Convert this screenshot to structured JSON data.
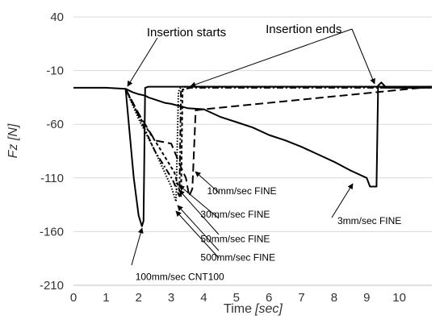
{
  "chart_data": {
    "type": "line",
    "xlabel": "Time",
    "xlabel_unit": "[sec]",
    "ylabel": "Fz [N]",
    "xlim": [
      0,
      11
    ],
    "ylim": [
      -210,
      40
    ],
    "x_ticks": [
      "0",
      "1",
      "2",
      "3",
      "4",
      "5",
      "6",
      "7",
      "8",
      "9",
      "10"
    ],
    "y_ticks": [
      "40",
      "-10",
      "-60",
      "-110",
      "-160",
      "-210"
    ],
    "grid": "horizontal",
    "annotations": [
      {
        "text": "Insertion starts",
        "x": 2.25,
        "y": 22
      },
      {
        "text": "Insertion ends",
        "x": 5.9,
        "y": 25
      },
      {
        "text": "10mm/sec FINE",
        "x": 4.1,
        "y": -125
      },
      {
        "text": "30mm/sec FINE",
        "x": 3.9,
        "y": -147
      },
      {
        "text": "50mm/sec FINE",
        "x": 3.9,
        "y": -170
      },
      {
        "text": "500mm/sec FINE",
        "x": 3.9,
        "y": -187
      },
      {
        "text": "100mm/sec CNT100",
        "x": 1.9,
        "y": -205
      },
      {
        "text": "3mm/sec FINE",
        "x": 8.1,
        "y": -153
      }
    ],
    "series": [
      {
        "dash": "",
        "x": [
          0,
          1,
          1.6,
          1.8,
          2.0,
          2.15,
          2.25,
          2.3,
          2.4,
          2.8,
          3.0,
          3.5,
          4.0,
          4.5,
          5.0,
          5.5,
          6.0,
          6.5,
          7.0,
          7.5,
          8.0,
          8.5,
          9.0,
          9.1,
          9.3,
          9.35,
          9.45,
          9.6,
          10,
          11
        ],
        "y": [
          -26,
          -26,
          -27,
          -30,
          -32,
          -33,
          -34,
          -35,
          -36,
          -40,
          -41,
          -45,
          -46,
          -53,
          -58,
          -63,
          -70,
          -75,
          -81,
          -88,
          -95,
          -103,
          -110,
          -118,
          -118,
          -24,
          -21,
          -26,
          -26,
          -26
        ]
      },
      {
        "dash": "",
        "x": [
          1.6,
          1.7,
          1.85,
          2.0,
          2.1,
          2.15,
          2.2,
          2.3,
          3,
          11
        ],
        "y": [
          -27,
          -60,
          -110,
          -145,
          -155,
          -150,
          -26,
          -25,
          -25,
          -25
        ]
      },
      {
        "dash": "4,3",
        "x": [
          1.6,
          2.0,
          2.6,
          3.1,
          3.3,
          3.35,
          3.4,
          4,
          11
        ],
        "y": [
          -27,
          -52,
          -80,
          -105,
          -127,
          -26,
          -25,
          -25,
          -25
        ]
      },
      {
        "dash": "1.5,2",
        "x": [
          1.6,
          2.0,
          2.5,
          3.0,
          3.15,
          3.22,
          3.3,
          4,
          11
        ],
        "y": [
          -27,
          -55,
          -85,
          -118,
          -132,
          -30,
          -25,
          -25,
          -25
        ]
      },
      {
        "dash": "8,3,2,3",
        "x": [
          1.6,
          2.0,
          2.5,
          3.05,
          3.25,
          3.3,
          3.6,
          11
        ],
        "y": [
          -27,
          -52,
          -85,
          -112,
          -127,
          -28,
          -26,
          -26
        ]
      },
      {
        "dash": "10,5",
        "x": [
          1.6,
          2.0,
          2.5,
          3.0,
          3.3,
          3.45,
          3.55,
          3.65,
          3.75,
          4.0,
          11
        ],
        "y": [
          -27,
          -50,
          -75,
          -78,
          -100,
          -110,
          -127,
          -120,
          -47,
          -46,
          -25
        ]
      }
    ]
  }
}
